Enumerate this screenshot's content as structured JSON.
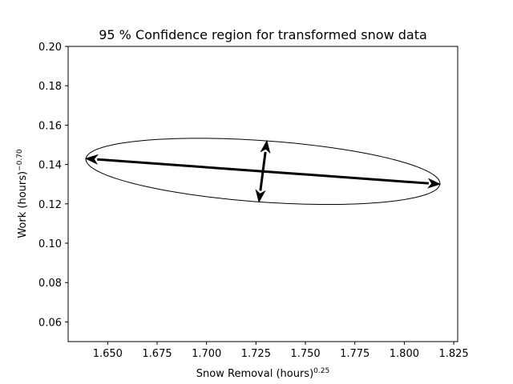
{
  "chart_data": {
    "type": "ellipse-region",
    "title": "95 % Confidence region for transformed snow data",
    "xlabel": "Snow Removal (hours)",
    "xlabel_sup": "0.25",
    "ylabel": "Work (hours)",
    "ylabel_sup": "−0.70",
    "xlim": [
      1.63,
      1.827
    ],
    "ylim": [
      0.05,
      0.2
    ],
    "xticks": [
      1.65,
      1.675,
      1.7,
      1.725,
      1.75,
      1.775,
      1.8,
      1.825
    ],
    "xtick_labels": [
      "1.650",
      "1.675",
      "1.700",
      "1.725",
      "1.750",
      "1.775",
      "1.800",
      "1.825"
    ],
    "yticks": [
      0.06,
      0.08,
      0.1,
      0.12,
      0.14,
      0.16,
      0.18,
      0.2
    ],
    "ytick_labels": [
      "0.06",
      "0.08",
      "0.10",
      "0.12",
      "0.14",
      "0.16",
      "0.18",
      "0.20"
    ],
    "grid": false,
    "ellipse": {
      "center": [
        1.7285,
        0.1365
      ],
      "major_axis_end": [
        1.818,
        0.13
      ],
      "minor_axis_end": [
        1.7305,
        0.152
      ],
      "color": "#000000"
    },
    "arrows": [
      {
        "name": "major-axis",
        "from": [
          1.7285,
          0.1365
        ],
        "to": [
          1.818,
          0.13
        ]
      },
      {
        "name": "major-axis",
        "from": [
          1.7285,
          0.1365
        ],
        "to": [
          1.639,
          0.143
        ]
      },
      {
        "name": "minor-axis",
        "from": [
          1.7285,
          0.1365
        ],
        "to": [
          1.7305,
          0.152
        ]
      },
      {
        "name": "minor-axis",
        "from": [
          1.7285,
          0.1365
        ],
        "to": [
          1.7265,
          0.121
        ]
      }
    ]
  }
}
